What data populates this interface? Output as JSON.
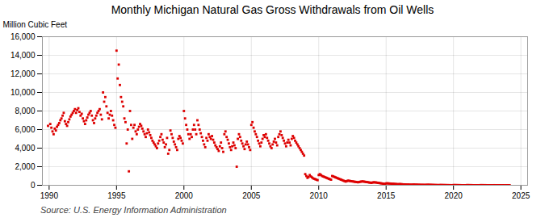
{
  "chart_data": {
    "type": "scatter",
    "title": "Monthly Michigan Natural Gas Gross Withdrawals from Oil Wells",
    "ylabel": "Million Cubic Feet",
    "source": "Source: U.S. Energy Information Administration",
    "color": "#dd0000",
    "marker": "square",
    "grid": true,
    "xlim": [
      1989.5,
      2025.5
    ],
    "ylim": [
      0,
      16000
    ],
    "xticks": [
      1990,
      1995,
      2000,
      2005,
      2010,
      2015,
      2020,
      2025
    ],
    "yticks": [
      0,
      {
        "value": 2000,
        "label": "2,000"
      },
      {
        "value": 4000,
        "label": "4,000"
      },
      {
        "value": 6000,
        "label": "6,000"
      },
      {
        "value": 8000,
        "label": "8,000"
      },
      {
        "value": 10000,
        "label": "10,000"
      },
      {
        "value": 12000,
        "label": "12,000"
      },
      {
        "value": 14000,
        "label": "14,000"
      },
      {
        "value": 16000,
        "label": "16,000"
      }
    ],
    "x": [
      1989.917,
      1990.083,
      1990.167,
      1990.25,
      1990.333,
      1990.417,
      1990.5,
      1990.583,
      1990.667,
      1990.75,
      1990.833,
      1990.917,
      1991.0,
      1991.083,
      1991.167,
      1991.25,
      1991.333,
      1991.417,
      1991.5,
      1991.583,
      1991.667,
      1991.75,
      1991.833,
      1991.917,
      1992.0,
      1992.083,
      1992.167,
      1992.25,
      1992.333,
      1992.417,
      1992.5,
      1992.583,
      1992.667,
      1992.75,
      1992.833,
      1992.917,
      1993.0,
      1993.083,
      1993.167,
      1993.25,
      1993.333,
      1993.417,
      1993.5,
      1993.583,
      1993.667,
      1993.75,
      1993.833,
      1993.917,
      1994.0,
      1994.083,
      1994.167,
      1994.25,
      1994.333,
      1994.417,
      1994.5,
      1994.583,
      1994.667,
      1994.75,
      1994.833,
      1994.917,
      1995.0,
      1995.083,
      1995.167,
      1995.25,
      1995.333,
      1995.417,
      1995.5,
      1995.583,
      1995.667,
      1995.75,
      1995.833,
      1995.917,
      1996.0,
      1996.083,
      1996.167,
      1996.25,
      1996.333,
      1996.417,
      1996.5,
      1996.583,
      1996.667,
      1996.75,
      1996.833,
      1996.917,
      1997.0,
      1997.083,
      1997.167,
      1997.25,
      1997.333,
      1997.417,
      1997.5,
      1997.583,
      1997.667,
      1997.75,
      1997.833,
      1997.917,
      1998.0,
      1998.083,
      1998.167,
      1998.25,
      1998.333,
      1998.417,
      1998.5,
      1998.583,
      1998.667,
      1998.75,
      1998.833,
      1998.917,
      1999.0,
      1999.083,
      1999.167,
      1999.25,
      1999.333,
      1999.417,
      1999.5,
      1999.583,
      1999.667,
      1999.75,
      1999.833,
      1999.917,
      2000.0,
      2000.083,
      2000.167,
      2000.25,
      2000.333,
      2000.417,
      2000.5,
      2000.583,
      2000.667,
      2000.75,
      2000.833,
      2000.917,
      2001.0,
      2001.083,
      2001.167,
      2001.25,
      2001.333,
      2001.417,
      2001.5,
      2001.583,
      2001.667,
      2001.75,
      2001.833,
      2001.917,
      2002.0,
      2002.083,
      2002.167,
      2002.25,
      2002.333,
      2002.417,
      2002.5,
      2002.583,
      2002.667,
      2002.75,
      2002.833,
      2002.917,
      2003.0,
      2003.083,
      2003.167,
      2003.25,
      2003.333,
      2003.417,
      2003.5,
      2003.583,
      2003.667,
      2003.75,
      2003.833,
      2003.917,
      2004.0,
      2004.083,
      2004.167,
      2004.25,
      2004.333,
      2004.417,
      2004.5,
      2004.583,
      2004.667,
      2004.75,
      2004.833,
      2004.917,
      2005.0,
      2005.083,
      2005.167,
      2005.25,
      2005.333,
      2005.417,
      2005.5,
      2005.583,
      2005.667,
      2005.75,
      2005.833,
      2005.917,
      2006.0,
      2006.083,
      2006.167,
      2006.25,
      2006.333,
      2006.417,
      2006.5,
      2006.583,
      2006.667,
      2006.75,
      2006.833,
      2006.917,
      2007.0,
      2007.083,
      2007.167,
      2007.25,
      2007.333,
      2007.417,
      2007.5,
      2007.583,
      2007.667,
      2007.75,
      2007.833,
      2007.917,
      2008.0,
      2008.083,
      2008.167,
      2008.25,
      2008.333,
      2008.417,
      2008.5,
      2008.583,
      2008.667,
      2008.75,
      2008.833,
      2008.917,
      2009.0,
      2009.083,
      2009.167,
      2009.25,
      2009.333,
      2009.417,
      2009.5,
      2009.583,
      2009.667,
      2009.75,
      2009.833,
      2009.917,
      2010.0,
      2010.083,
      2010.167,
      2010.25,
      2010.333,
      2010.417,
      2010.5,
      2010.583,
      2010.667,
      2010.75,
      2010.833,
      2010.917,
      2011.0,
      2011.083,
      2011.167,
      2011.25,
      2011.333,
      2011.417,
      2011.5,
      2011.583,
      2011.667,
      2011.75,
      2011.833,
      2011.917,
      2012.0,
      2012.083,
      2012.167,
      2012.25,
      2012.333,
      2012.417,
      2012.5,
      2012.583,
      2012.667,
      2012.75,
      2012.833,
      2012.917,
      2013.0,
      2013.083,
      2013.167,
      2013.25,
      2013.333,
      2013.417,
      2013.5,
      2013.583,
      2013.667,
      2013.75,
      2013.833,
      2013.917,
      2014.0,
      2014.083,
      2014.167,
      2014.25,
      2014.333,
      2014.417,
      2014.5,
      2014.583,
      2014.667,
      2014.75,
      2014.833,
      2014.917,
      2015.0,
      2015.083,
      2015.167,
      2015.25,
      2015.333,
      2015.417,
      2015.5,
      2015.583,
      2015.667,
      2015.75,
      2015.833,
      2015.917,
      2016.0,
      2016.083,
      2016.167,
      2016.25,
      2016.333,
      2016.417,
      2016.5,
      2016.583,
      2016.667,
      2016.75,
      2016.833,
      2016.917,
      2017.0,
      2017.083,
      2017.167,
      2017.25,
      2017.333,
      2017.417,
      2017.5,
      2017.583,
      2017.667,
      2017.75,
      2017.833,
      2017.917,
      2018.0,
      2018.083,
      2018.167,
      2018.25,
      2018.333,
      2018.417,
      2018.5,
      2018.583,
      2018.667,
      2018.75,
      2018.833,
      2018.917,
      2019.0,
      2019.083,
      2019.167,
      2019.25,
      2019.333,
      2019.417,
      2019.5,
      2019.583,
      2019.667,
      2019.75,
      2019.833,
      2019.917,
      2020.0,
      2020.083,
      2020.167,
      2020.25,
      2020.333,
      2020.417,
      2020.5,
      2020.583,
      2020.667,
      2020.75,
      2020.833,
      2020.917,
      2021.0,
      2021.083,
      2021.167,
      2021.25,
      2021.333,
      2021.417,
      2021.5,
      2021.583,
      2021.667,
      2021.75,
      2021.833,
      2021.917,
      2022.0,
      2022.083,
      2022.167,
      2022.25,
      2022.333,
      2022.417,
      2022.5,
      2022.583,
      2022.667,
      2022.75,
      2022.833,
      2022.917,
      2023.0,
      2023.083,
      2023.167,
      2023.25,
      2023.333,
      2023.417,
      2023.5,
      2023.583,
      2023.667,
      2023.75,
      2023.833,
      2023.917,
      2024.0,
      2024.083,
      2024.167
    ],
    "values": [
      6400,
      6600,
      6200,
      5800,
      5500,
      6100,
      5900,
      6300,
      6500,
      6700,
      7000,
      7200,
      7500,
      7800,
      6900,
      6600,
      6400,
      6800,
      7100,
      7400,
      7600,
      7800,
      8000,
      8200,
      7800,
      8100,
      8300,
      7900,
      7500,
      7700,
      7200,
      6900,
      6600,
      7000,
      7300,
      7600,
      7800,
      8000,
      7500,
      7000,
      6700,
      7200,
      7500,
      7800,
      8000,
      8200,
      7600,
      7100,
      10000,
      9000,
      9500,
      8500,
      7800,
      7200,
      7600,
      8000,
      7500,
      7000,
      6500,
      6200,
      14500,
      11500,
      13000,
      10800,
      9500,
      9000,
      8500,
      7200,
      6800,
      4500,
      6000,
      1500,
      8000,
      6500,
      5000,
      6200,
      6500,
      5800,
      5500,
      6000,
      6300,
      6600,
      6400,
      6100,
      5800,
      5500,
      5200,
      5600,
      6000,
      5700,
      5400,
      5100,
      4800,
      4600,
      4400,
      4200,
      4000,
      4500,
      4800,
      5200,
      5500,
      4900,
      4600,
      4100,
      4400,
      5100,
      3400,
      3800,
      5900,
      5500,
      5100,
      4700,
      4400,
      4100,
      3800,
      5000,
      5300,
      5100,
      4800,
      4500,
      8000,
      7200,
      6500,
      6000,
      5500,
      5000,
      5500,
      5200,
      6000,
      6500,
      6000,
      5500,
      7000,
      6500,
      6000,
      5600,
      5200,
      4800,
      4400,
      4100,
      5100,
      4800,
      5500,
      5200,
      5000,
      5300,
      4900,
      4600,
      4300,
      4100,
      3900,
      3700,
      4200,
      4600,
      4000,
      3600,
      5500,
      5800,
      5200,
      4900,
      4500,
      4100,
      3800,
      4200,
      4600,
      4300,
      4000,
      2000,
      5000,
      5500,
      5200,
      4800,
      4500,
      4200,
      3900,
      4400,
      4700,
      4400,
      4100,
      3800,
      6500,
      6800,
      6200,
      5800,
      5500,
      5200,
      4800,
      4500,
      4200,
      4600,
      5000,
      5400,
      5200,
      5500,
      5100,
      4800,
      4500,
      4200,
      4000,
      4400,
      4700,
      5000,
      4600,
      4300,
      5200,
      5500,
      5800,
      5400,
      5100,
      4800,
      4500,
      4200,
      4600,
      4900,
      4600,
      4300,
      5000,
      5300,
      5100,
      4800,
      4600,
      4400,
      4200,
      4000,
      3800,
      3600,
      3400,
      3200,
      1200,
      1000,
      800,
      900,
      1100,
      950,
      850,
      750,
      700,
      650,
      600,
      550,
      1100,
      1200,
      1100,
      1000,
      950,
      900,
      850,
      800,
      750,
      700,
      650,
      600,
      1000,
      950,
      900,
      850,
      800,
      750,
      700,
      650,
      600,
      550,
      500,
      450,
      400,
      450,
      500,
      480,
      460,
      440,
      420,
      400,
      380,
      360,
      340,
      320,
      350,
      380,
      400,
      420,
      400,
      380,
      360,
      340,
      320,
      300,
      280,
      260,
      300,
      320,
      310,
      300,
      280,
      260,
      240,
      220,
      200,
      180,
      160,
      140,
      200,
      210,
      200,
      190,
      180,
      170,
      160,
      150,
      140,
      130,
      120,
      110,
      130,
      120,
      110,
      100,
      95,
      90,
      85,
      80,
      75,
      70,
      65,
      60,
      80,
      75,
      70,
      65,
      60,
      55,
      50,
      48,
      46,
      44,
      42,
      40,
      50,
      55,
      52,
      48,
      44,
      40,
      36,
      32,
      28,
      25,
      22,
      20,
      30,
      28,
      26,
      24,
      22,
      20,
      18,
      16,
      14,
      12,
      10,
      8,
      25,
      22,
      20,
      18,
      16,
      14,
      12,
      10,
      8,
      6,
      5,
      4,
      20,
      18,
      16,
      14,
      12,
      10,
      8,
      6,
      5,
      4,
      3,
      2,
      15,
      14,
      13,
      12,
      11,
      10,
      9,
      8,
      7,
      6,
      5,
      4,
      10,
      9,
      8,
      7,
      6,
      5,
      4,
      3,
      2,
      1,
      1,
      1,
      5,
      4,
      3
    ]
  }
}
